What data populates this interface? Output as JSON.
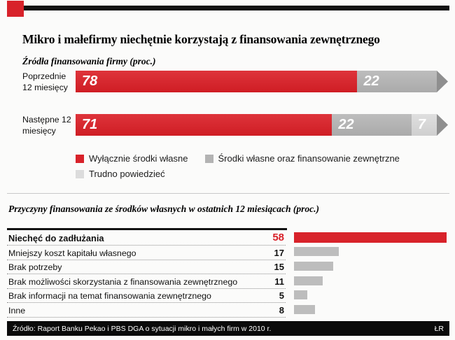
{
  "header": {
    "title": "Mikro i małefirmy niechętnie korzystają z finansowania zewnętrznego"
  },
  "chart_data": [
    {
      "type": "bar",
      "variant": "horizontal-stacked",
      "title": "Źródła finansowania firmy (proc.)",
      "categories": [
        "Poprzednie 12 miesięcy",
        "Następne 12 miesięcy"
      ],
      "series": [
        {
          "name": "Wyłącznie środki własne",
          "color": "#d8222a",
          "values": [
            78,
            71
          ]
        },
        {
          "name": "Środki własne oraz finansowanie zewnętrzne",
          "color": "#b3b3b3",
          "values": [
            22,
            22
          ]
        },
        {
          "name": "Trudno powiedzieć",
          "color": "#dcdcdc",
          "values": [
            null,
            7
          ]
        }
      ],
      "legend_position": "below"
    },
    {
      "type": "bar",
      "variant": "horizontal",
      "title": "Przyczyny finansowania ze środków własnych w ostatnich 12 miesiącach (proc.)",
      "categories": [
        "Niechęć do zadłużania",
        "Mniejszy koszt kapitału własnego",
        "Brak potrzeby",
        "Brak możliwości skorzystania z finansowania zewnętrznego",
        "Brak informacji na temat finansowania zewnętrznego",
        "Inne"
      ],
      "values": [
        58,
        17,
        15,
        11,
        5,
        8
      ],
      "highlight_index": 0,
      "highlight_color": "#d8222a",
      "bar_color": "#bdbdbd",
      "xlim": [
        0,
        59
      ]
    }
  ],
  "footer": {
    "source": "Źródło: Raport Banku Pekao i PBS DGA o sytuacji mikro i małych firm w 2010 r.",
    "credit": "ŁR"
  }
}
